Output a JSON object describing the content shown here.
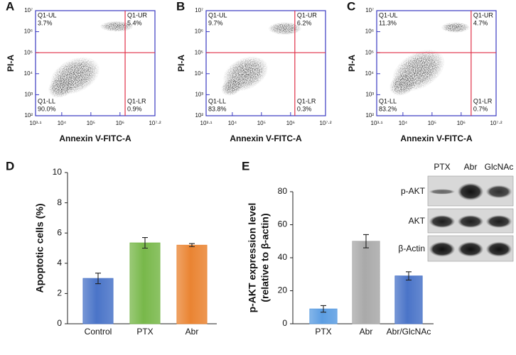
{
  "chart_data": [
    {
      "type": "flow",
      "panel": "A",
      "x_label": "Annexin V-FITC-A",
      "y_label": "PI-A",
      "log_scale": true,
      "xlim": [
        1258.93,
        15848932
      ],
      "ylim": [
        100,
        10000000
      ],
      "xticks": [
        {
          "value": 1258.93,
          "label": "10³·¹"
        },
        {
          "value": 10000,
          "label": "10⁴"
        },
        {
          "value": 100000,
          "label": "10⁵"
        },
        {
          "value": 1000000,
          "label": "10⁶"
        },
        {
          "value": 15848932,
          "label": "10⁷·²"
        }
      ],
      "yticks": [
        {
          "value": 100,
          "label": "10²"
        },
        {
          "value": 1000,
          "label": "10³"
        },
        {
          "value": 10000,
          "label": "10⁴"
        },
        {
          "value": 100000,
          "label": "10⁵"
        },
        {
          "value": 1000000,
          "label": "10⁶"
        },
        {
          "value": 10000000,
          "label": "10⁷"
        }
      ],
      "gate_x": 1500000,
      "gate_y": 100000,
      "quadrants": [
        {
          "name": "Q1-UL",
          "percent": "3.7%"
        },
        {
          "name": "Q1-UR",
          "percent": "5.4%"
        },
        {
          "name": "Q1-LL",
          "percent": "90.0%"
        },
        {
          "name": "Q1-LR",
          "percent": "0.9%"
        }
      ]
    },
    {
      "type": "flow",
      "panel": "B",
      "x_label": "Annexin V-FITC-A",
      "y_label": "PI-A",
      "log_scale": true,
      "xlim": [
        1258.93,
        15848932
      ],
      "ylim": [
        100,
        10000000
      ],
      "xticks": [
        {
          "value": 1258.93,
          "label": "10³·¹"
        },
        {
          "value": 10000,
          "label": "10⁴"
        },
        {
          "value": 100000,
          "label": "10⁵"
        },
        {
          "value": 1000000,
          "label": "10⁶"
        },
        {
          "value": 15848932,
          "label": "10⁷·²"
        }
      ],
      "yticks": [
        {
          "value": 100,
          "label": "10²"
        },
        {
          "value": 1000,
          "label": "10³"
        },
        {
          "value": 10000,
          "label": "10⁴"
        },
        {
          "value": 100000,
          "label": "10⁵"
        },
        {
          "value": 1000000,
          "label": "10⁶"
        },
        {
          "value": 10000000,
          "label": "10⁷"
        }
      ],
      "gate_x": 1400000,
      "gate_y": 100000,
      "quadrants": [
        {
          "name": "Q1-UL",
          "percent": "9.7%"
        },
        {
          "name": "Q1-UR",
          "percent": "6.2%"
        },
        {
          "name": "Q1-LL",
          "percent": "83.8%"
        },
        {
          "name": "Q1-LR",
          "percent": "0.3%"
        }
      ]
    },
    {
      "type": "flow",
      "panel": "C",
      "x_label": "Annexin V-FITC-A",
      "y_label": "PI-A",
      "log_scale": true,
      "xlim": [
        1258.93,
        15848932
      ],
      "ylim": [
        100,
        10000000
      ],
      "xticks": [
        {
          "value": 1258.93,
          "label": "10³·¹"
        },
        {
          "value": 10000,
          "label": "10⁴"
        },
        {
          "value": 100000,
          "label": "10⁵"
        },
        {
          "value": 1000000,
          "label": "10⁶"
        },
        {
          "value": 15848932,
          "label": "10⁷·²"
        }
      ],
      "yticks": [
        {
          "value": 100,
          "label": "10²"
        },
        {
          "value": 1000,
          "label": "10³"
        },
        {
          "value": 10000,
          "label": "10⁴"
        },
        {
          "value": 100000,
          "label": "10⁵"
        },
        {
          "value": 1000000,
          "label": "10⁶"
        },
        {
          "value": 10000000,
          "label": "10⁷"
        }
      ],
      "gate_x": 2200000,
      "gate_y": 100000,
      "quadrants": [
        {
          "name": "Q1-UL",
          "percent": "11.3%"
        },
        {
          "name": "Q1-UR",
          "percent": "4.7%"
        },
        {
          "name": "Q1-LL",
          "percent": "83.2%"
        },
        {
          "name": "Q1-LR",
          "percent": "0.7%"
        }
      ]
    },
    {
      "type": "bar",
      "panel": "D",
      "y_label": [
        "Apoptotic cells (%)"
      ],
      "categories": [
        "Control",
        "PTX",
        "Abr"
      ],
      "values": [
        3.0,
        5.35,
        5.2
      ],
      "errors": [
        0.35,
        0.35,
        0.1
      ],
      "colors": [
        "#4a74c8",
        "#78b84a",
        "#ea8432"
      ],
      "ylim": [
        0,
        10
      ],
      "yticks": [
        0,
        2,
        4,
        6,
        8,
        10
      ]
    },
    {
      "type": "bar",
      "panel": "E",
      "y_label": [
        "p-AKT expression level",
        "(relative to β-actin)"
      ],
      "categories": [
        "PTX",
        "Abr",
        "Abr/GlcNAc"
      ],
      "values": [
        9,
        50,
        29
      ],
      "errors": [
        2,
        4,
        2.5
      ],
      "colors": [
        "#5b9de2",
        "#a9a9a9",
        "#4a74c8"
      ],
      "ylim": [
        0,
        80
      ],
      "yticks": [
        0,
        20,
        40,
        60,
        80
      ],
      "blot": {
        "columns": [
          "PTX",
          "Abr",
          "GlcNAc"
        ],
        "rows": [
          "p-AKT",
          "AKT",
          "β-Actin"
        ]
      }
    }
  ]
}
